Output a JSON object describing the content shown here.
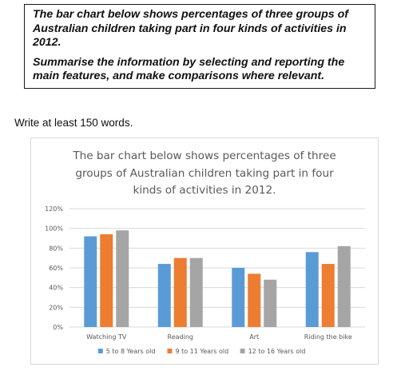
{
  "task": {
    "line1": "The bar chart below shows percentages of three groups of",
    "line2": "Australian children taking part in four kinds of activities in",
    "line3": "2012.",
    "line4": "Summarise the information by selecting and reporting the",
    "line5": "main features, and make comparisons where relevant."
  },
  "instruction": "Write at least 150 words.",
  "chart_data": {
    "type": "bar",
    "title_lines": [
      "The bar chart below shows percentages of three",
      "groups of Australian children taking part in four",
      "kinds of activities in 2012."
    ],
    "categories": [
      "Watching TV",
      "Reading",
      "Art",
      "Riding the bike"
    ],
    "series": [
      {
        "name": "5 to 8 Years old",
        "color": "#5b9bd5",
        "values": [
          92,
          64,
          60,
          76
        ]
      },
      {
        "name": "9 to 11 Years old",
        "color": "#ed7d31",
        "values": [
          94,
          70,
          54,
          64
        ]
      },
      {
        "name": "12 to 16 Years old",
        "color": "#a5a5a5",
        "values": [
          98,
          70,
          48,
          82
        ]
      }
    ],
    "y_ticks": [
      "0%",
      "20%",
      "40%",
      "60%",
      "80%",
      "100%",
      "120%"
    ],
    "ylim": [
      0,
      120
    ],
    "grid": true,
    "legend_position": "bottom"
  }
}
